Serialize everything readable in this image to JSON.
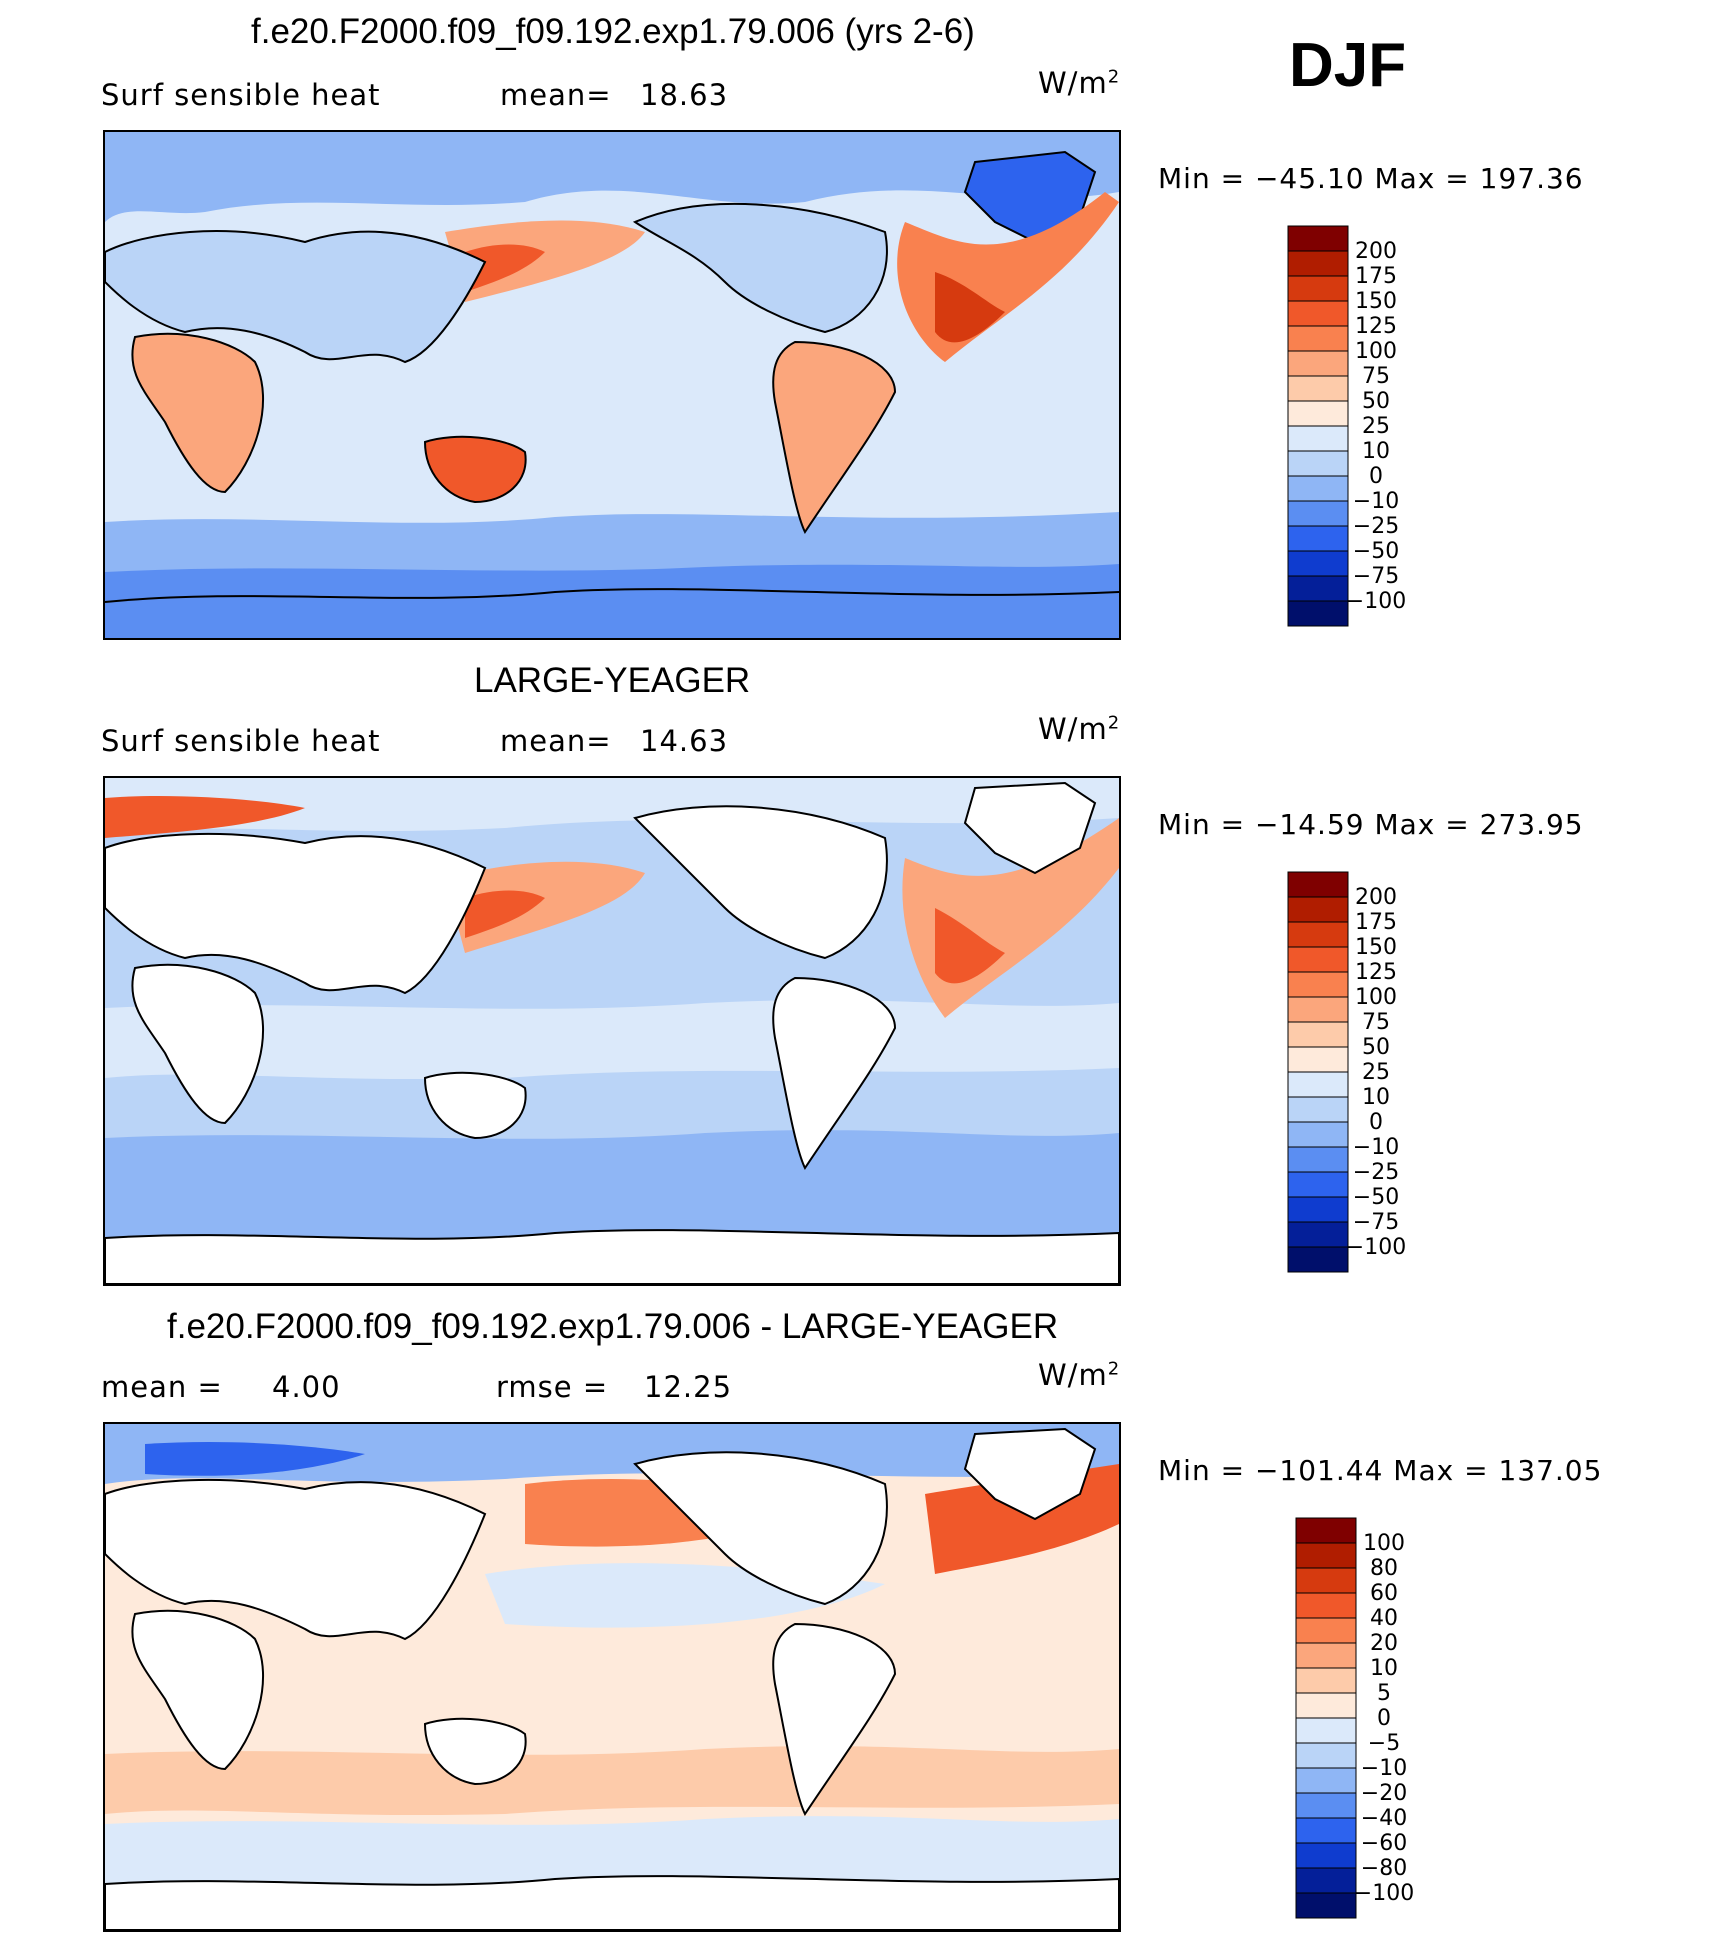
{
  "season": "DJF",
  "units_label": "W/m",
  "units_sup": "2",
  "panels": [
    {
      "title": "f.e20.F2000.f09_f09.192.exp1.79.006 (yrs 2-6)",
      "var_label": "Surf  sensible  heat",
      "stat1_label": "mean=",
      "stat1_value": "18.63",
      "stat2_label": "",
      "stat2_value": "",
      "min_label": "Min  =",
      "min_value": "−45.10",
      "max_label": "Max  =",
      "max_value": "197.36",
      "colorbar": {
        "labels": [
          "200",
          "175",
          "150",
          "125",
          "100",
          "75",
          "50",
          "25",
          "10",
          "0",
          "−10",
          "−25",
          "−50",
          "−75",
          "−100"
        ],
        "colors": [
          "#7f0000",
          "#b01d00",
          "#d63a0f",
          "#f0582a",
          "#f9814f",
          "#fba67c",
          "#fdcbaa",
          "#feeadb",
          "#dbe9fa",
          "#bad4f7",
          "#8fb6f5",
          "#5b8ef2",
          "#2d63ee",
          "#0f3ccf",
          "#041f99",
          "#000f6b"
        ]
      }
    },
    {
      "title": "LARGE-YEAGER",
      "var_label": "Surf  sensible  heat",
      "stat1_label": "mean=",
      "stat1_value": "14.63",
      "stat2_label": "",
      "stat2_value": "",
      "min_label": "Min  =",
      "min_value": "−14.59",
      "max_label": "Max  =",
      "max_value": "273.95",
      "colorbar": {
        "labels": [
          "200",
          "175",
          "150",
          "125",
          "100",
          "75",
          "50",
          "25",
          "10",
          "0",
          "−10",
          "−25",
          "−50",
          "−75",
          "−100"
        ],
        "colors": [
          "#7f0000",
          "#b01d00",
          "#d63a0f",
          "#f0582a",
          "#f9814f",
          "#fba67c",
          "#fdcbaa",
          "#feeadb",
          "#dbe9fa",
          "#bad4f7",
          "#8fb6f5",
          "#5b8ef2",
          "#2d63ee",
          "#0f3ccf",
          "#041f99",
          "#000f6b"
        ]
      }
    },
    {
      "title": "f.e20.F2000.f09_f09.192.exp1.79.006 - LARGE-YEAGER",
      "var_label": "",
      "stat1_label": "mean  =",
      "stat1_value": "4.00",
      "stat2_label": "rmse  =",
      "stat2_value": "12.25",
      "min_label": "Min  =",
      "min_value": "−101.44",
      "max_label": "Max  =",
      "max_value": "137.05",
      "colorbar": {
        "labels": [
          "100",
          "80",
          "60",
          "40",
          "20",
          "10",
          "5",
          "0",
          "−5",
          "−10",
          "−20",
          "−40",
          "−60",
          "−80",
          "−100"
        ],
        "colors": [
          "#7f0000",
          "#b01d00",
          "#d63a0f",
          "#f0582a",
          "#f9814f",
          "#fba67c",
          "#fdcbaa",
          "#feeadb",
          "#dbe9fa",
          "#bad4f7",
          "#8fb6f5",
          "#5b8ef2",
          "#2d63ee",
          "#0f3ccf",
          "#041f99",
          "#000f6b"
        ]
      }
    }
  ]
}
